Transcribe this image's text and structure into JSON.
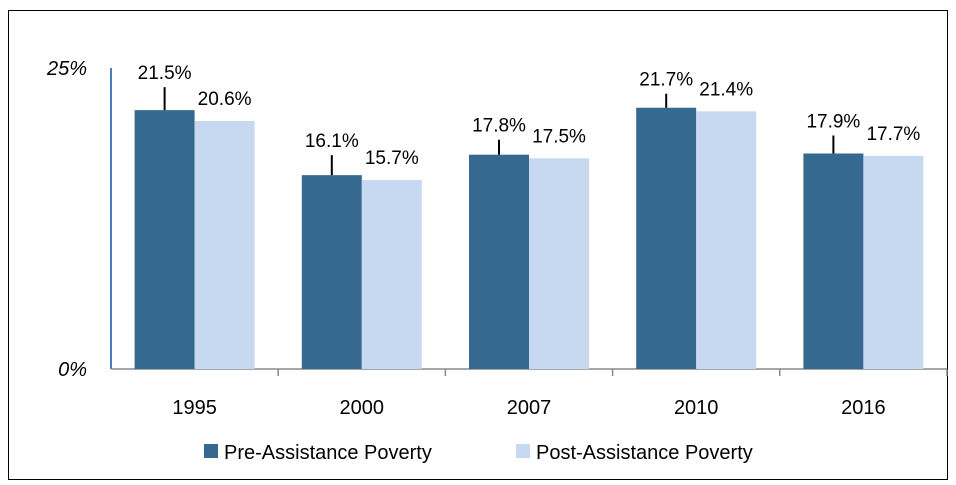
{
  "chart_data": {
    "type": "bar",
    "categories": [
      "1995",
      "2000",
      "2007",
      "2010",
      "2016"
    ],
    "series": [
      {
        "name": "Pre-Assistance Poverty",
        "values": [
          21.5,
          16.1,
          17.8,
          21.7,
          17.9
        ],
        "labels": [
          "21.5%",
          "16.1%",
          "17.8%",
          "21.7%",
          "17.9%"
        ],
        "color": "#35698f"
      },
      {
        "name": "Post-Assistance Poverty",
        "values": [
          20.6,
          15.7,
          17.5,
          21.4,
          17.7
        ],
        "labels": [
          "20.6%",
          "15.7%",
          "17.5%",
          "21.4%",
          "17.7%"
        ],
        "color": "#c6d9f1"
      }
    ],
    "ylim": [
      0,
      25
    ],
    "y_tick_labels": [
      "0%",
      "25%"
    ],
    "title": "",
    "xlabel": "",
    "ylabel": "",
    "legend_position": "bottom",
    "grid": false,
    "error_bars_on_series": "Pre-Assistance Poverty"
  }
}
